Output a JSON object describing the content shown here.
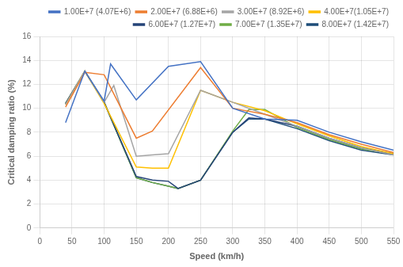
{
  "chart_data": {
    "type": "line",
    "xlabel": "Speed (km/h)",
    "ylabel": "Critical damping ratio (%)",
    "series": [
      {
        "name": "1.00E+7 (4.07E+6)",
        "color": "#4472C4",
        "x": [
          40,
          70,
          100,
          110,
          150,
          200,
          250,
          300,
          350,
          400,
          450,
          500,
          550
        ],
        "values": [
          8.8,
          13.1,
          10.6,
          13.7,
          10.7,
          13.5,
          13.9,
          10.0,
          9.1,
          9.0,
          8.0,
          7.2,
          6.5
        ]
      },
      {
        "name": "2.00E+7 (6.88E+6)",
        "color": "#ED7D31",
        "x": [
          40,
          70,
          100,
          150,
          175,
          250,
          300,
          350,
          400,
          450,
          500,
          550
        ],
        "values": [
          10.1,
          13.0,
          12.8,
          7.5,
          8.1,
          13.4,
          10.0,
          9.5,
          8.8,
          7.8,
          7.0,
          6.3
        ]
      },
      {
        "name": "3.00E+7 (8.92E+6)",
        "color": "#A5A5A5",
        "x": [
          40,
          70,
          100,
          115,
          150,
          175,
          200,
          250,
          300,
          350,
          400,
          450,
          500,
          550
        ],
        "values": [
          10.3,
          13.1,
          10.5,
          11.9,
          6.0,
          6.1,
          6.2,
          11.5,
          10.5,
          9.5,
          8.5,
          7.5,
          6.7,
          6.1
        ]
      },
      {
        "name": "4.00E+7(1.05E+7)",
        "color": "#FFC000",
        "x": [
          40,
          70,
          100,
          150,
          175,
          200,
          250,
          300,
          350,
          400,
          450,
          500,
          550
        ],
        "values": [
          10.3,
          13.1,
          10.4,
          5.1,
          5.0,
          5.0,
          11.5,
          10.5,
          9.8,
          8.7,
          7.7,
          6.8,
          6.2
        ]
      },
      {
        "name": "6.00E+7 (1.27E+7)",
        "color": "#264478",
        "x": [
          40,
          70,
          100,
          150,
          175,
          200,
          215,
          250,
          300,
          325,
          350,
          400,
          450,
          500,
          550
        ],
        "values": [
          10.4,
          13.1,
          10.5,
          4.3,
          4.0,
          3.9,
          3.3,
          4.0,
          8.0,
          9.2,
          9.1,
          8.5,
          7.5,
          6.7,
          6.2
        ]
      },
      {
        "name": "7.00E+7 (1.35E+7)",
        "color": "#70AD47",
        "x": [
          40,
          70,
          100,
          150,
          175,
          200,
          215,
          250,
          300,
          325,
          350,
          400,
          450,
          500,
          550
        ],
        "values": [
          10.4,
          13.1,
          10.5,
          4.2,
          3.8,
          3.5,
          3.3,
          4.0,
          8.1,
          9.9,
          9.9,
          8.4,
          7.4,
          6.6,
          6.2
        ]
      },
      {
        "name": "8.00E+7 (1.42E+7)",
        "color": "#1F4E79",
        "x": [
          40,
          70,
          100,
          150,
          175,
          200,
          215,
          250,
          300,
          325,
          350,
          400,
          450,
          500,
          550
        ],
        "values": [
          10.4,
          13.1,
          10.5,
          4.2,
          3.8,
          3.5,
          3.3,
          4.0,
          8.0,
          9.1,
          9.1,
          8.3,
          7.3,
          6.5,
          6.1
        ]
      }
    ],
    "xlim": [
      0,
      550
    ],
    "ylim": [
      0,
      16
    ],
    "xticks": [
      0,
      50,
      100,
      150,
      200,
      250,
      300,
      350,
      400,
      450,
      500,
      550
    ],
    "yticks": [
      0,
      2,
      4,
      6,
      8,
      10,
      12,
      14,
      16
    ],
    "grid": true,
    "legend": "upper right"
  }
}
